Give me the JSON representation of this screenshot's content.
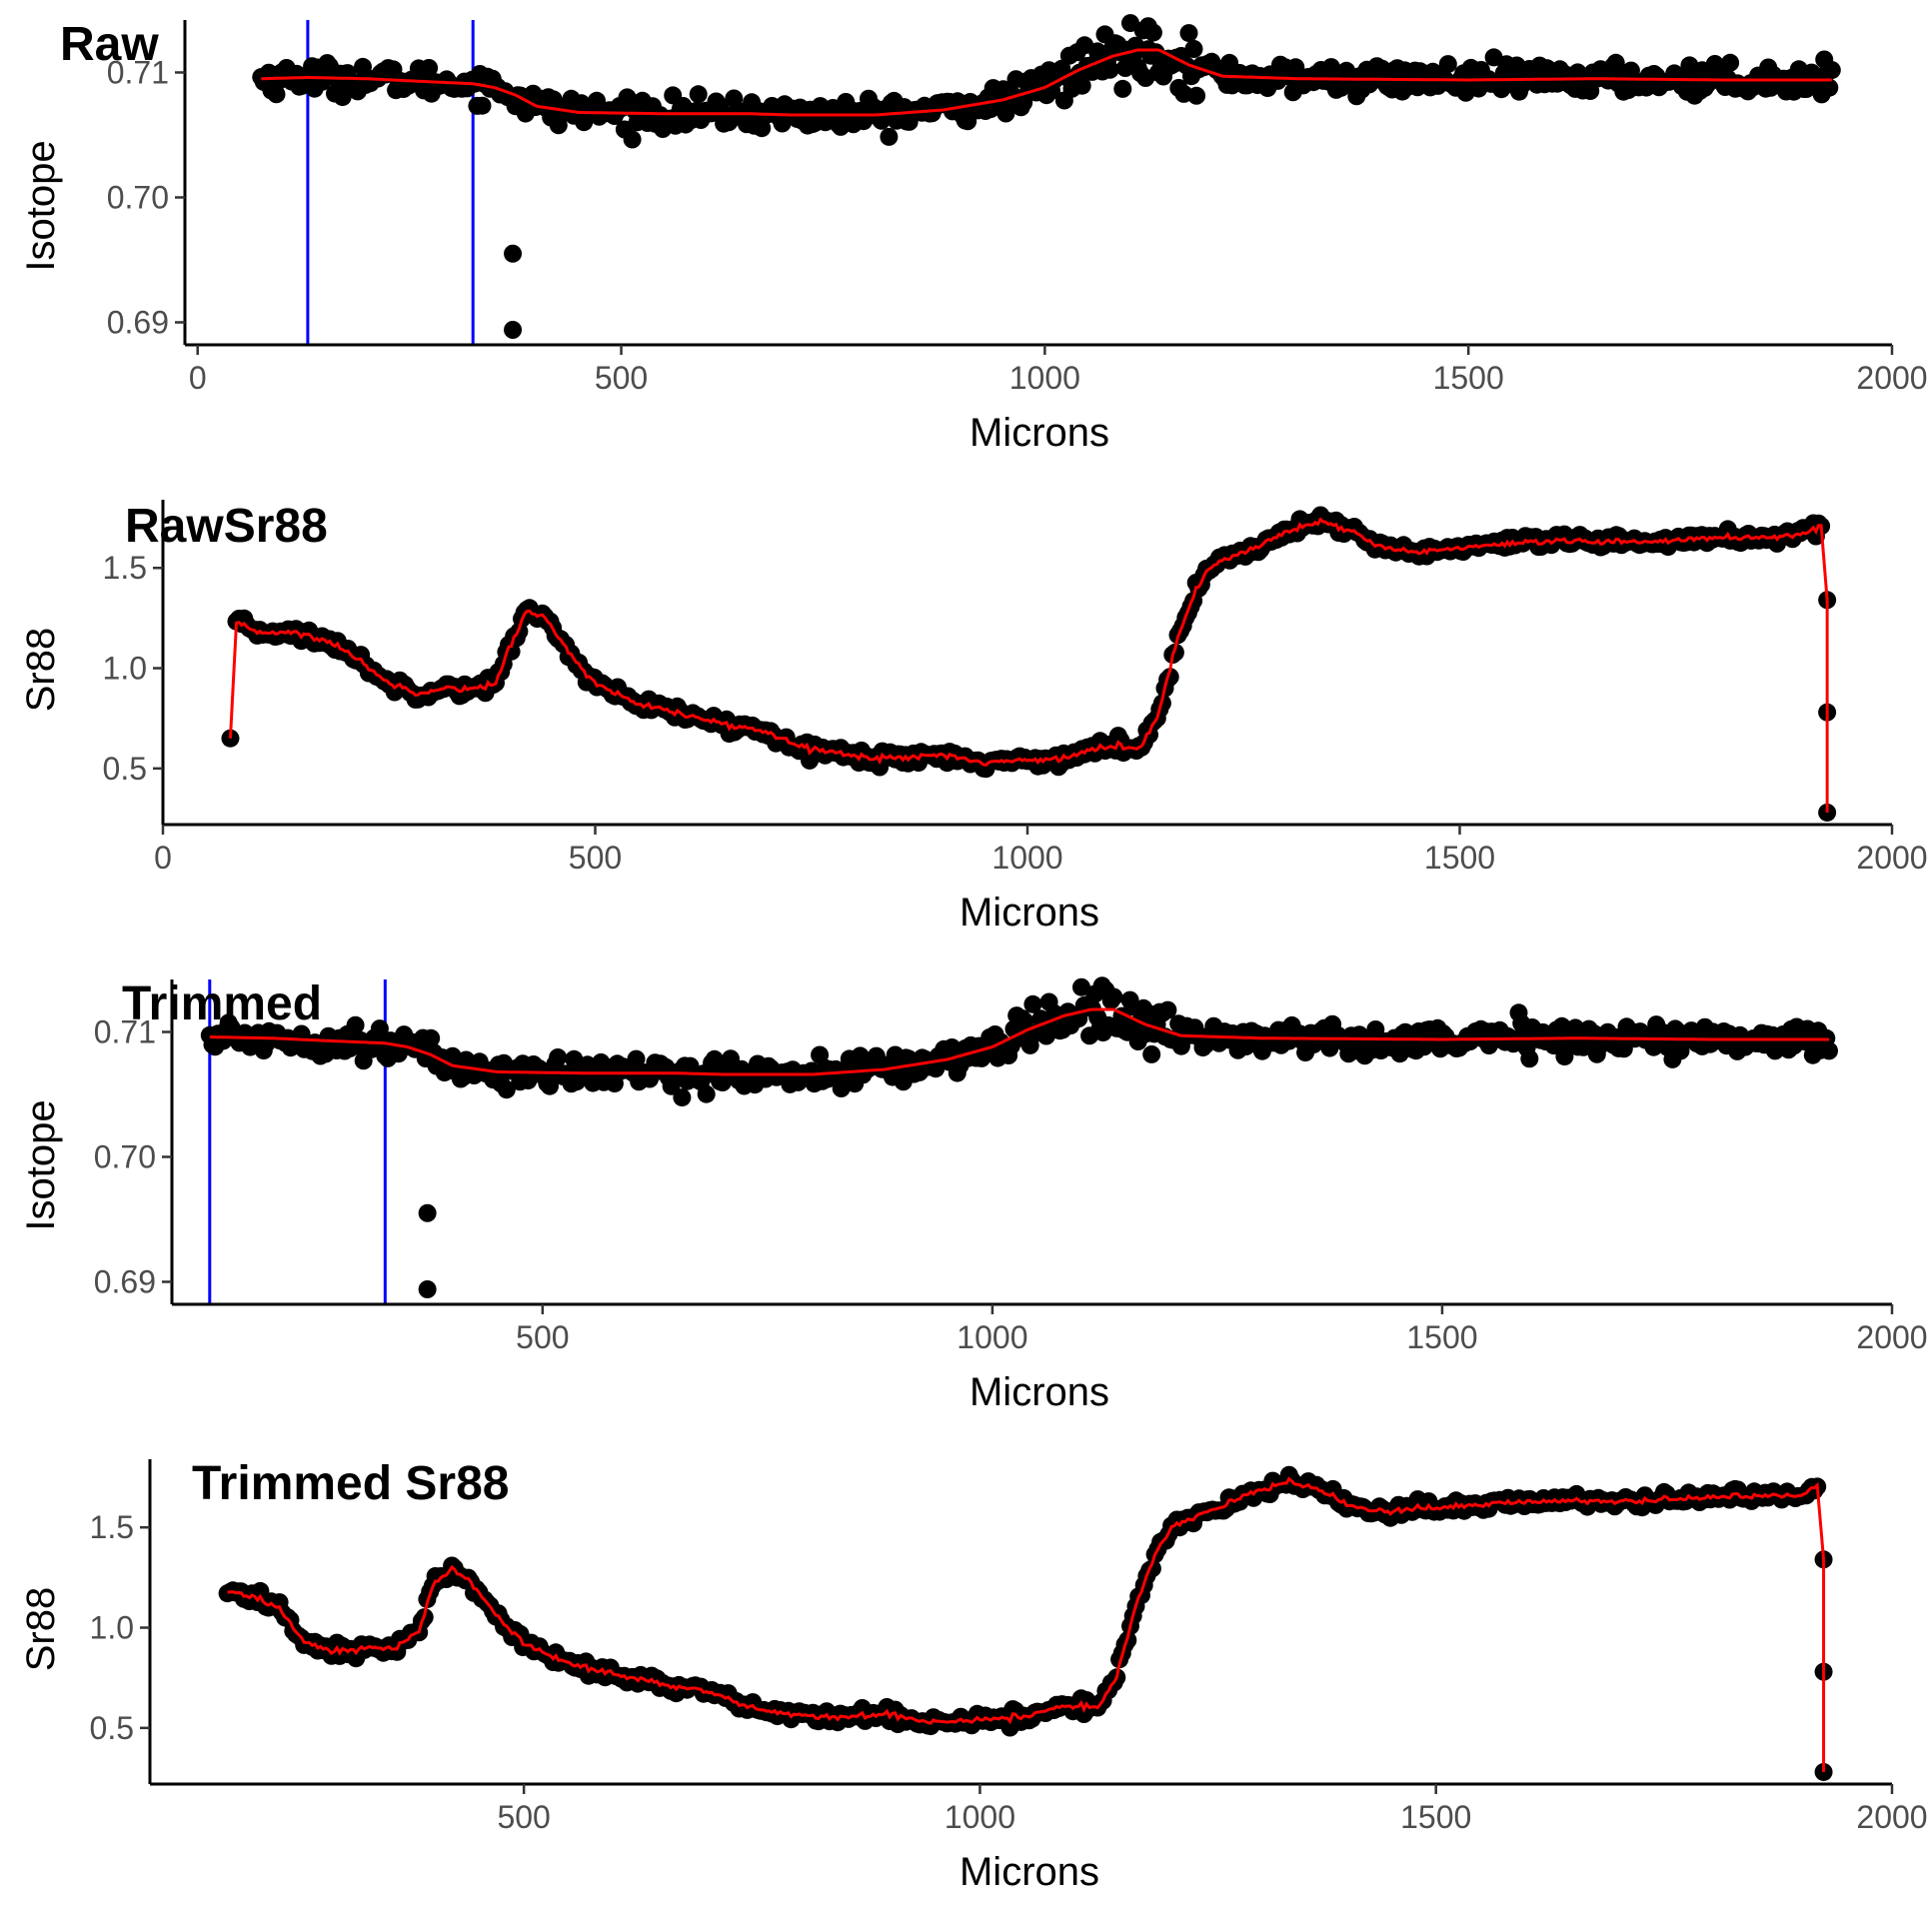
{
  "chart_data": [
    {
      "type": "scatter",
      "title": "Raw",
      "xlabel": "Microns",
      "ylabel": "Isotope",
      "xlim": [
        -15,
        2000
      ],
      "ylim": [
        0.6882,
        0.7142
      ],
      "x_ticks": [
        0,
        500,
        1000,
        1500,
        2000
      ],
      "y_ticks": [
        0.69,
        0.7,
        0.71
      ],
      "grid": false,
      "legend": "none",
      "point_color": "#000000",
      "smooth_color": "#ff0000",
      "vline_color": "#0000ff",
      "vlines": [
        130,
        325
      ],
      "outliers": [
        {
          "x": 372,
          "y": 0.6955
        },
        {
          "x": 372,
          "y": 0.6894
        },
        {
          "x": 1122,
          "y": 0.7137
        }
      ],
      "profile": [
        [
          75,
          0.7095
        ],
        [
          130,
          0.7096
        ],
        [
          200,
          0.7095
        ],
        [
          260,
          0.7093
        ],
        [
          325,
          0.7091
        ],
        [
          350,
          0.7088
        ],
        [
          375,
          0.7082
        ],
        [
          400,
          0.7073
        ],
        [
          450,
          0.7068
        ],
        [
          550,
          0.7067
        ],
        [
          650,
          0.7067
        ],
        [
          700,
          0.7066
        ],
        [
          800,
          0.7066
        ],
        [
          880,
          0.707
        ],
        [
          950,
          0.7078
        ],
        [
          1000,
          0.7088
        ],
        [
          1040,
          0.7102
        ],
        [
          1080,
          0.7113
        ],
        [
          1110,
          0.7118
        ],
        [
          1135,
          0.7118
        ],
        [
          1170,
          0.7106
        ],
        [
          1210,
          0.7097
        ],
        [
          1300,
          0.7095
        ],
        [
          1500,
          0.7094
        ],
        [
          1650,
          0.7095
        ],
        [
          1800,
          0.7094
        ],
        [
          1930,
          0.7094
        ]
      ]
    },
    {
      "type": "scatter",
      "title": "RawSr88",
      "xlabel": "Microns",
      "ylabel": "Sr88",
      "xlim": [
        0,
        2000
      ],
      "ylim": [
        0.22,
        1.84
      ],
      "x_ticks": [
        0,
        500,
        1000,
        1500,
        2000
      ],
      "y_ticks": [
        0.5,
        1.0,
        1.5
      ],
      "grid": false,
      "legend": "none",
      "point_color": "#000000",
      "smooth_color": "#ff0000",
      "tail_points": [
        {
          "x": 1925,
          "y": 1.34
        },
        {
          "x": 1925,
          "y": 0.78
        },
        {
          "x": 1925,
          "y": 0.28
        }
      ],
      "head_point": {
        "x": 78,
        "y": 0.65
      },
      "profile": [
        [
          85,
          1.22
        ],
        [
          110,
          1.18
        ],
        [
          150,
          1.18
        ],
        [
          200,
          1.12
        ],
        [
          230,
          1.03
        ],
        [
          260,
          0.93
        ],
        [
          290,
          0.88
        ],
        [
          330,
          0.9
        ],
        [
          360,
          0.9
        ],
        [
          385,
          0.92
        ],
        [
          400,
          1.1
        ],
        [
          420,
          1.28
        ],
        [
          440,
          1.26
        ],
        [
          470,
          1.08
        ],
        [
          500,
          0.92
        ],
        [
          550,
          0.82
        ],
        [
          600,
          0.77
        ],
        [
          650,
          0.72
        ],
        [
          700,
          0.68
        ],
        [
          750,
          0.6
        ],
        [
          800,
          0.56
        ],
        [
          850,
          0.55
        ],
        [
          900,
          0.57
        ],
        [
          950,
          0.53
        ],
        [
          1000,
          0.54
        ],
        [
          1050,
          0.56
        ],
        [
          1080,
          0.6
        ],
        [
          1110,
          0.61
        ],
        [
          1130,
          0.6
        ],
        [
          1150,
          0.75
        ],
        [
          1170,
          1.1
        ],
        [
          1190,
          1.35
        ],
        [
          1210,
          1.5
        ],
        [
          1250,
          1.58
        ],
        [
          1300,
          1.68
        ],
        [
          1340,
          1.73
        ],
        [
          1380,
          1.67
        ],
        [
          1410,
          1.6
        ],
        [
          1450,
          1.58
        ],
        [
          1500,
          1.6
        ],
        [
          1600,
          1.63
        ],
        [
          1700,
          1.63
        ],
        [
          1800,
          1.65
        ],
        [
          1900,
          1.66
        ],
        [
          1920,
          1.72
        ]
      ]
    },
    {
      "type": "scatter",
      "title": "Trimmed",
      "xlabel": "Microns",
      "ylabel": "Isotope",
      "xlim": [
        88,
        2000
      ],
      "ylim": [
        0.6882,
        0.7142
      ],
      "x_ticks": [
        500,
        1000,
        1500,
        2000
      ],
      "y_ticks": [
        0.69,
        0.7,
        0.71
      ],
      "grid": false,
      "legend": "none",
      "point_color": "#000000",
      "smooth_color": "#ff0000",
      "vline_color": "#0000ff",
      "vlines": [
        130,
        325
      ],
      "outliers": [
        {
          "x": 372,
          "y": 0.6955
        },
        {
          "x": 372,
          "y": 0.6894
        },
        {
          "x": 1122,
          "y": 0.7137
        }
      ],
      "profile": [
        [
          130,
          0.7096
        ],
        [
          200,
          0.7095
        ],
        [
          260,
          0.7093
        ],
        [
          325,
          0.7091
        ],
        [
          350,
          0.7088
        ],
        [
          375,
          0.7082
        ],
        [
          400,
          0.7073
        ],
        [
          450,
          0.7068
        ],
        [
          550,
          0.7067
        ],
        [
          650,
          0.7067
        ],
        [
          700,
          0.7066
        ],
        [
          800,
          0.7066
        ],
        [
          880,
          0.707
        ],
        [
          950,
          0.7078
        ],
        [
          1000,
          0.7088
        ],
        [
          1040,
          0.7102
        ],
        [
          1080,
          0.7113
        ],
        [
          1110,
          0.7118
        ],
        [
          1135,
          0.7118
        ],
        [
          1170,
          0.7106
        ],
        [
          1210,
          0.7097
        ],
        [
          1300,
          0.7095
        ],
        [
          1500,
          0.7094
        ],
        [
          1650,
          0.7095
        ],
        [
          1800,
          0.7094
        ],
        [
          1930,
          0.7094
        ]
      ]
    },
    {
      "type": "scatter",
      "title": "Trimmed Sr88",
      "xlabel": "Microns",
      "ylabel": "Sr88",
      "xlim": [
        90,
        2000
      ],
      "ylim": [
        0.22,
        1.84
      ],
      "x_ticks": [
        500,
        1000,
        1500,
        2000
      ],
      "y_ticks": [
        0.5,
        1.0,
        1.5
      ],
      "grid": false,
      "legend": "none",
      "point_color": "#000000",
      "smooth_color": "#ff0000",
      "tail_points": [
        {
          "x": 1925,
          "y": 1.34
        },
        {
          "x": 1925,
          "y": 0.78
        },
        {
          "x": 1925,
          "y": 0.28
        }
      ],
      "profile": [
        [
          175,
          1.18
        ],
        [
          200,
          1.16
        ],
        [
          230,
          1.1
        ],
        [
          260,
          0.93
        ],
        [
          290,
          0.88
        ],
        [
          330,
          0.9
        ],
        [
          360,
          0.9
        ],
        [
          385,
          0.98
        ],
        [
          400,
          1.2
        ],
        [
          420,
          1.3
        ],
        [
          440,
          1.24
        ],
        [
          470,
          1.06
        ],
        [
          500,
          0.92
        ],
        [
          550,
          0.82
        ],
        [
          600,
          0.77
        ],
        [
          650,
          0.72
        ],
        [
          700,
          0.68
        ],
        [
          750,
          0.6
        ],
        [
          800,
          0.56
        ],
        [
          850,
          0.55
        ],
        [
          900,
          0.57
        ],
        [
          950,
          0.53
        ],
        [
          1000,
          0.54
        ],
        [
          1050,
          0.56
        ],
        [
          1080,
          0.6
        ],
        [
          1110,
          0.61
        ],
        [
          1130,
          0.6
        ],
        [
          1150,
          0.75
        ],
        [
          1170,
          1.1
        ],
        [
          1190,
          1.35
        ],
        [
          1210,
          1.5
        ],
        [
          1250,
          1.58
        ],
        [
          1300,
          1.68
        ],
        [
          1340,
          1.73
        ],
        [
          1380,
          1.67
        ],
        [
          1410,
          1.6
        ],
        [
          1450,
          1.58
        ],
        [
          1500,
          1.6
        ],
        [
          1600,
          1.63
        ],
        [
          1700,
          1.63
        ],
        [
          1800,
          1.65
        ],
        [
          1900,
          1.66
        ],
        [
          1920,
          1.72
        ]
      ]
    }
  ]
}
